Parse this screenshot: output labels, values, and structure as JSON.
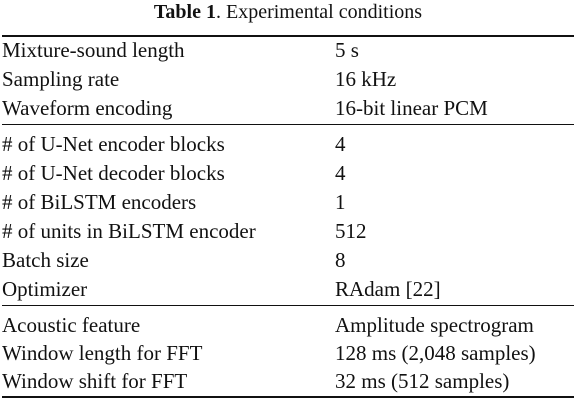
{
  "caption": {
    "label": "Table 1",
    "title": ". Experimental conditions"
  },
  "table": {
    "groups": [
      {
        "rows": [
          {
            "label": "Mixture-sound length",
            "value": "5 s"
          },
          {
            "label": "Sampling rate",
            "value": "16 kHz"
          },
          {
            "label": "Waveform encoding",
            "value": "16-bit linear PCM"
          }
        ]
      },
      {
        "rows": [
          {
            "label": "# of U-Net encoder blocks",
            "value": "4"
          },
          {
            "label": "# of U-Net decoder blocks",
            "value": "4"
          },
          {
            "label": "# of BiLSTM encoders",
            "value": "1"
          },
          {
            "label": "# of units in BiLSTM encoder",
            "value": "512"
          },
          {
            "label": "Batch size",
            "value": "8"
          },
          {
            "label": "Optimizer",
            "value": "RAdam [22]"
          }
        ]
      },
      {
        "rows": [
          {
            "label": "Acoustic feature",
            "value": "Amplitude spectrogram"
          },
          {
            "label": "Window length for FFT",
            "value": "128 ms (2,048 samples)"
          },
          {
            "label": "Window shift for FFT",
            "value": "32 ms (512 samples)"
          }
        ]
      }
    ]
  }
}
